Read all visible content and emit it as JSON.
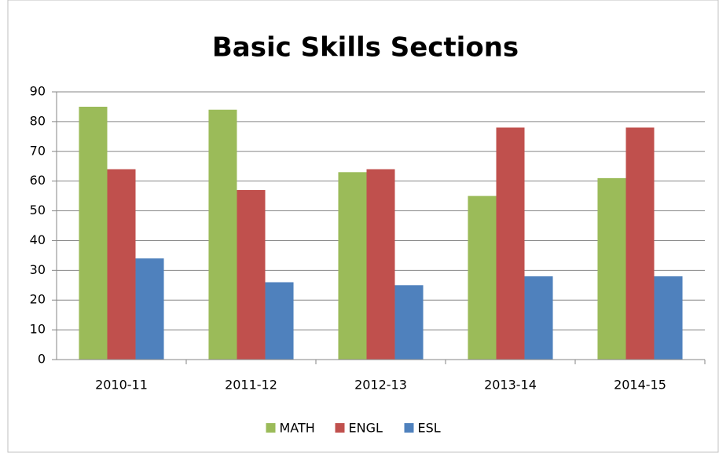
{
  "chart_data": {
    "type": "bar",
    "title": "Basic Skills Sections",
    "categories": [
      "2010-11",
      "2011-12",
      "2012-13",
      "2013-14",
      "2014-15"
    ],
    "series": [
      {
        "name": "MATH",
        "color": "#9bbb59",
        "values": [
          85,
          84,
          63,
          55,
          61
        ]
      },
      {
        "name": "ENGL",
        "color": "#c0504d",
        "values": [
          64,
          57,
          64,
          78,
          78
        ]
      },
      {
        "name": "ESL",
        "color": "#4f81bd",
        "values": [
          34,
          26,
          25,
          28,
          28
        ]
      }
    ],
    "ylim": [
      0,
      90
    ],
    "yticks": [
      0,
      10,
      20,
      30,
      40,
      50,
      60,
      70,
      80,
      90
    ],
    "grid": true,
    "legend": "bottom"
  }
}
